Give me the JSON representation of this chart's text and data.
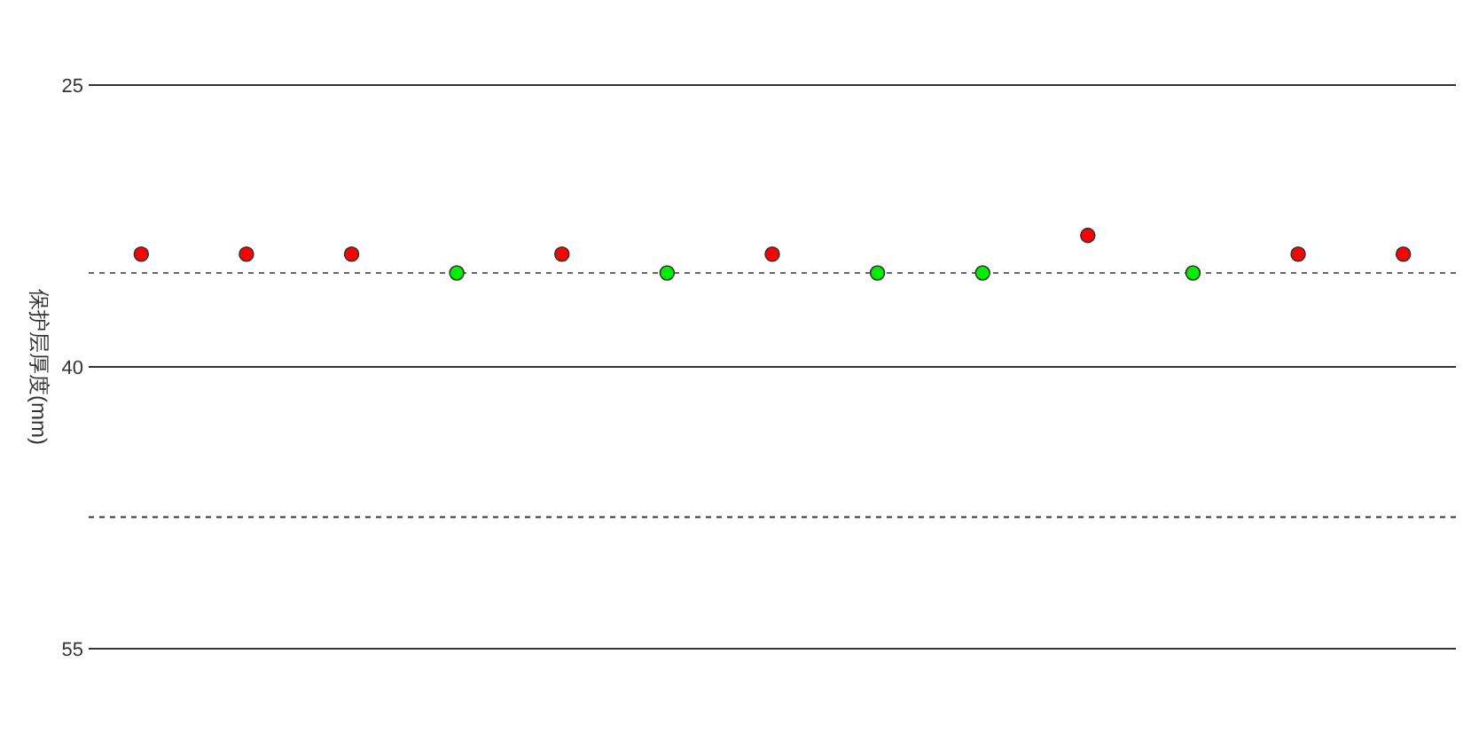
{
  "chart_data": {
    "type": "scatter",
    "ylabel": "保护层厚度(mm)",
    "categories": [
      null,
      null,
      null,
      null,
      null,
      null,
      null,
      null,
      null,
      null,
      null,
      null,
      null
    ],
    "values": [
      34,
      34,
      34,
      35,
      34,
      35,
      34,
      35,
      35,
      33,
      35,
      34,
      34
    ],
    "colors": [
      "#ff0000",
      "#ff0000",
      "#ff0000",
      "#00ee00",
      "#ff0000",
      "#00ee00",
      "#ff0000",
      "#00ee00",
      "#00ee00",
      "#ff0000",
      "#00ee00",
      "#ff0000",
      "#ff0000"
    ],
    "ylim": [
      55,
      25
    ],
    "yticks": [
      25,
      40,
      55
    ],
    "grid": "y",
    "marker": "circle",
    "ref_lines": [
      {
        "axis": "y",
        "value": 35,
        "line_style": "dashed",
        "color": "#666666"
      },
      {
        "axis": "y",
        "value": 48,
        "line_style": "dashed",
        "color": "#333333"
      }
    ]
  }
}
